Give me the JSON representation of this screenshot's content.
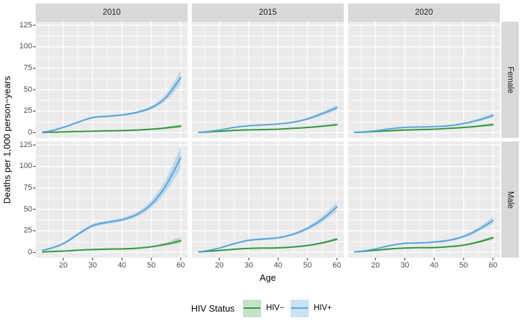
{
  "colors": {
    "panel_bg": "#EBEBEB",
    "strip_bg": "#D9D9D9",
    "grid": "#FFFFFF",
    "tick_mark": "#333333",
    "tick_label": "#4D4D4D",
    "hiv_negative_line": "#2E9639",
    "hiv_positive_line": "#56A5DC"
  },
  "chart_data": {
    "type": "line",
    "xlabel": "Age",
    "ylabel": "Deaths per 1,000 person−years",
    "x": [
      13,
      15,
      20,
      25,
      30,
      35,
      40,
      45,
      50,
      55,
      60
    ],
    "x_ticks": [
      20,
      30,
      40,
      50,
      60
    ],
    "x_minor": [
      15,
      25,
      35,
      45,
      55
    ],
    "y_ticks": [
      0,
      25,
      50,
      75,
      100,
      125
    ],
    "y_minor": [
      12.5,
      37.5,
      62.5,
      87.5,
      112.5
    ],
    "xlim": [
      10.65,
      62.35
    ],
    "ylim": [
      -6.2,
      129.2
    ],
    "grid": true,
    "legend_position": "bottom",
    "col_facets": [
      "2010",
      "2015",
      "2020"
    ],
    "row_facets": [
      "Female",
      "Male"
    ],
    "legend": {
      "title": "HIV Status",
      "items": [
        {
          "label": "HIV−",
          "color": "#2E9639",
          "fill_opacity": 0.25
        },
        {
          "label": "HIV+",
          "color": "#56A5DC",
          "fill_opacity": 0.3
        }
      ]
    },
    "panels": [
      {
        "row": "Female",
        "col": "2010",
        "series": [
          {
            "name": "HIV−",
            "values": [
              0.2,
              0.4,
              0.8,
              1.2,
              1.6,
              2.0,
              2.4,
              3.0,
              4.0,
              5.5,
              7.5
            ],
            "lower": [
              0.1,
              0.2,
              0.6,
              1.0,
              1.3,
              1.7,
              2.0,
              2.5,
              3.4,
              4.5,
              5.8
            ],
            "upper": [
              0.3,
              0.6,
              1.0,
              1.5,
              1.9,
              2.3,
              2.8,
              3.5,
              4.7,
              6.8,
              9.6
            ]
          },
          {
            "name": "HIV+",
            "values": [
              0.8,
              1.5,
              6.0,
              12.0,
              17.5,
              19.0,
              20.5,
              23.5,
              29.0,
              41.0,
              64.0
            ],
            "lower": [
              0.5,
              1.0,
              5.2,
              11.0,
              16.4,
              18.0,
              19.4,
              22.2,
              27.0,
              37.5,
              56.0
            ],
            "upper": [
              1.2,
              2.1,
              6.9,
              13.1,
              18.6,
              20.1,
              21.7,
              24.9,
              31.2,
              45.0,
              72.5
            ]
          }
        ]
      },
      {
        "row": "Female",
        "col": "2015",
        "series": [
          {
            "name": "HIV−",
            "values": [
              0.3,
              0.6,
              1.5,
              2.5,
              3.2,
              3.6,
              4.0,
              5.0,
              6.0,
              7.5,
              9.2
            ],
            "lower": [
              0.2,
              0.45,
              1.3,
              2.2,
              2.9,
              3.3,
              3.6,
              4.5,
              5.4,
              6.6,
              7.9
            ],
            "upper": [
              0.4,
              0.8,
              1.75,
              2.85,
              3.55,
              3.95,
              4.45,
              5.5,
              6.7,
              8.5,
              10.8
            ]
          },
          {
            "name": "HIV+",
            "values": [
              0.4,
              0.8,
              3.0,
              6.0,
              8.0,
              9.0,
              10.0,
              12.0,
              16.0,
              22.0,
              29.0
            ],
            "lower": [
              0.3,
              0.6,
              2.6,
              5.4,
              7.3,
              8.3,
              9.2,
              11.0,
              14.7,
              20.0,
              26.0
            ],
            "upper": [
              0.6,
              1.1,
              3.5,
              6.7,
              8.8,
              9.8,
              10.9,
              13.1,
              17.4,
              24.2,
              32.5
            ]
          }
        ]
      },
      {
        "row": "Female",
        "col": "2020",
        "series": [
          {
            "name": "HIV−",
            "values": [
              0.3,
              0.5,
              1.2,
              2.2,
              3.0,
              3.5,
              4.0,
              5.0,
              6.0,
              7.5,
              9.3
            ],
            "lower": [
              0.2,
              0.4,
              1.0,
              2.0,
              2.7,
              3.2,
              3.6,
              4.5,
              5.4,
              6.6,
              8.0
            ],
            "upper": [
              0.4,
              0.7,
              1.4,
              2.5,
              3.4,
              3.9,
              4.5,
              5.5,
              6.7,
              8.6,
              11.0
            ]
          },
          {
            "name": "HIV+",
            "values": [
              0.3,
              0.6,
              2.0,
              4.5,
              6.0,
              6.5,
              7.0,
              8.0,
              10.5,
              14.5,
              20.0
            ],
            "lower": [
              0.2,
              0.45,
              1.7,
              4.0,
              5.5,
              6.0,
              6.4,
              7.3,
              9.5,
              13.0,
              17.7
            ],
            "upper": [
              0.5,
              0.85,
              2.4,
              5.0,
              6.6,
              7.1,
              7.7,
              8.9,
              11.7,
              16.3,
              22.7
            ]
          }
        ]
      },
      {
        "row": "Male",
        "col": "2010",
        "series": [
          {
            "name": "HIV−",
            "values": [
              0.4,
              0.7,
              1.5,
              2.5,
              3.3,
              3.8,
              4.0,
              4.8,
              6.5,
              9.5,
              13.5
            ],
            "lower": [
              0.3,
              0.5,
              1.3,
              2.2,
              3.0,
              3.4,
              3.6,
              4.3,
              5.7,
              8.0,
              10.5
            ],
            "upper": [
              0.6,
              0.9,
              1.8,
              2.9,
              3.7,
              4.2,
              4.5,
              5.5,
              7.5,
              11.5,
              17.8
            ]
          },
          {
            "name": "HIV+",
            "values": [
              2.5,
              4.0,
              10.0,
              21.0,
              31.0,
              35.0,
              38.0,
              44.0,
              56.0,
              78.0,
              110.0
            ],
            "lower": [
              2.0,
              3.2,
              8.8,
              19.2,
              29.0,
              33.0,
              36.0,
              41.5,
              52.0,
              71.0,
              97.5
            ],
            "upper": [
              3.1,
              4.9,
              11.3,
              22.8,
              33.0,
              37.0,
              40.2,
              46.8,
              60.5,
              85.5,
              123.0
            ]
          }
        ]
      },
      {
        "row": "Male",
        "col": "2015",
        "series": [
          {
            "name": "HIV−",
            "values": [
              0.6,
              1.0,
              2.2,
              3.6,
              4.6,
              5.0,
              5.2,
              6.2,
              8.0,
              11.0,
              15.3
            ],
            "lower": [
              0.45,
              0.8,
              1.95,
              3.3,
              4.25,
              4.65,
              4.8,
              5.7,
              7.3,
              10.0,
              13.6
            ],
            "upper": [
              0.8,
              1.25,
              2.5,
              3.95,
              5.0,
              5.4,
              5.65,
              6.75,
              8.8,
              12.1,
              17.2
            ]
          },
          {
            "name": "HIV+",
            "values": [
              0.8,
              1.5,
              5.0,
              10.0,
              14.0,
              15.5,
              17.0,
              21.0,
              28.0,
              38.5,
              53.0
            ],
            "lower": [
              0.6,
              1.2,
              4.4,
              9.1,
              12.9,
              14.4,
              15.8,
              19.5,
              26.0,
              35.3,
              48.0
            ],
            "upper": [
              1.1,
              1.9,
              5.7,
              11.0,
              15.2,
              16.7,
              18.3,
              22.6,
              30.2,
              42.0,
              58.5
            ]
          }
        ]
      },
      {
        "row": "Male",
        "col": "2020",
        "series": [
          {
            "name": "HIV−",
            "values": [
              0.6,
              1.0,
              2.4,
              4.0,
              5.0,
              5.4,
              5.6,
              6.6,
              8.4,
              12.0,
              17.0
            ],
            "lower": [
              0.45,
              0.8,
              2.1,
              3.6,
              4.6,
              5.0,
              5.1,
              6.0,
              7.6,
              10.8,
              15.0
            ],
            "upper": [
              0.8,
              1.3,
              2.75,
              4.4,
              5.5,
              5.9,
              6.2,
              7.3,
              9.3,
              13.4,
              19.4
            ]
          },
          {
            "name": "HIV+",
            "values": [
              0.6,
              1.2,
              4.0,
              8.0,
              10.5,
              11.0,
              12.0,
              14.0,
              18.5,
              26.5,
              37.0
            ],
            "lower": [
              0.45,
              0.9,
              3.4,
              7.2,
              9.6,
              10.1,
              11.0,
              12.9,
              17.0,
              24.2,
              33.3
            ],
            "upper": [
              0.85,
              1.6,
              4.7,
              8.9,
              11.5,
              12.0,
              13.1,
              15.3,
              20.2,
              29.1,
              41.2
            ]
          }
        ]
      }
    ]
  }
}
